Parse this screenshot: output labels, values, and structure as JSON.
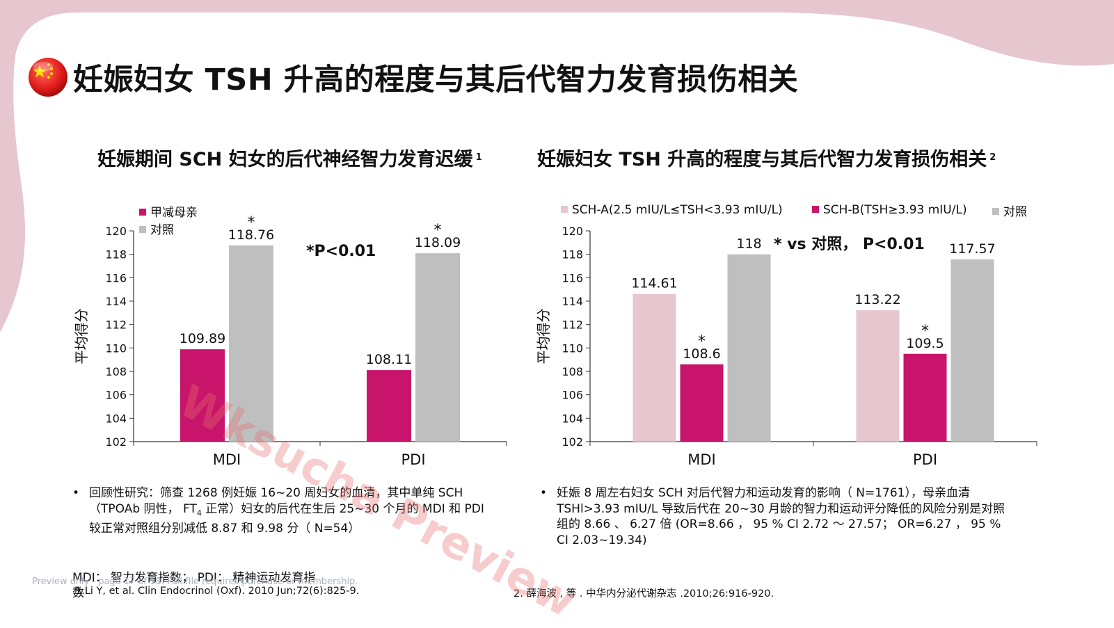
{
  "page": {
    "title": "妊娠妇女 TSH  升高的程度与其后代智力发育损伤相关",
    "title_icon": "china-flag-icon",
    "background_accent": "#e6c6cf"
  },
  "left_panel": {
    "subtitle": "妊娠期间 SCH 妇女的后代神经智力发育迟缓",
    "subtitle_ref": "1",
    "bullet": "回顾性研究：筛查 1268  例妊娠 16~20  周妇女的血清，其中单纯 SCH （TPOAb 阴性， FT",
    "bullet_sub": "4",
    "bullet_rest": " 正常）妇女的后代在生后 25~30  个月的 MDI 和 PDI 较正常对照组分别减低 8.87 和 9.98  分（ N=54）",
    "abbrev_line1": "MDI：  智力发育指数；  PDI：  精神运动发育指",
    "abbrev_line2": "数",
    "reference": "1.Li Y, et al. Clin Endocrinol (Oxf). 2010 Jun;72(6):825-9."
  },
  "right_panel": {
    "subtitle": "妊娠妇女 TSH 升高的程度与其后代智力发育损伤相关",
    "subtitle_ref": "2",
    "bullet": "妊娠 8 周左右妇女 SCH 对后代智力和运动发育的影响（ N=1761），母亲血清 TSHl>3.93 mIU/L 导致后代在 20~30 月龄的智力和运动评分降低的风险分别是对照组的 8.66 、 6.27 倍 (OR=8.66 ，  95 %  CI 2.72 ～ 27.57；  OR=6.27 ，  95 % CI 2.03~19.34)",
    "reference": "2.  薛海波 , 等 . 中华内分泌代谢杂志 .2010;26:916-920."
  },
  "preview_note": "Preview only - page 17 of 18. Full file requires purchase or membership.",
  "watermark": "Wksucha Preview",
  "chart_data": [
    {
      "type": "bar",
      "categories": [
        "MDI",
        "PDI"
      ],
      "series": [
        {
          "name": "甲减母亲",
          "values": [
            109.89,
            108.11
          ],
          "color": "#c8156b",
          "labels": [
            "109.89",
            "108.11"
          ],
          "stars": [
            false,
            false
          ]
        },
        {
          "name": "对照",
          "values": [
            118.76,
            118.09
          ],
          "color": "#bfbfbf",
          "labels": [
            "118.76",
            "118.09"
          ],
          "stars": [
            true,
            true
          ]
        }
      ],
      "ylabel": "平均得分",
      "ylim": [
        102,
        120
      ],
      "yticks": [
        102,
        104,
        106,
        108,
        110,
        112,
        114,
        116,
        118,
        120
      ],
      "annotation": "*P<0.01",
      "legend_position": "top-left",
      "grid": false
    },
    {
      "type": "bar",
      "categories": [
        "MDI",
        "PDI"
      ],
      "series": [
        {
          "name": "SCH-A(2.5 mIU/L≤TSH<3.93 mIU/L)",
          "values": [
            114.61,
            113.22
          ],
          "color": "#e6c6cf",
          "labels": [
            "114.61",
            "113.22"
          ],
          "stars": [
            false,
            false
          ]
        },
        {
          "name": "SCH-B(TSH≥3.93 mIU/L)",
          "values": [
            108.6,
            109.5
          ],
          "color": "#c8156b",
          "labels": [
            "108.6",
            "109.5"
          ],
          "stars": [
            true,
            true
          ]
        },
        {
          "name": "对照",
          "values": [
            118,
            117.57
          ],
          "color": "#bfbfbf",
          "labels": [
            "118",
            "117.57"
          ],
          "stars": [
            false,
            false
          ]
        }
      ],
      "ylabel": "平均得分",
      "ylim": [
        102,
        120
      ],
      "yticks": [
        102,
        104,
        106,
        108,
        110,
        112,
        114,
        116,
        118,
        120
      ],
      "annotation": "* vs  对照，  P<0.01",
      "legend_position": "top",
      "grid": false
    }
  ]
}
